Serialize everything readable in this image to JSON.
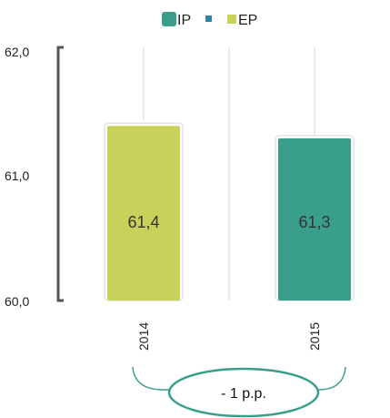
{
  "chart_data": {
    "type": "bar",
    "categories": [
      "2014",
      "2015"
    ],
    "values": [
      61.4,
      61.3
    ],
    "data_labels": [
      "61,4",
      "61,3"
    ],
    "bar_colors": [
      "#c8d25a",
      "#3a9e8c"
    ],
    "legend": [
      {
        "name": "IP",
        "color": "#3a9e8c"
      },
      {
        "name": "",
        "color": "#2e86a3"
      },
      {
        "name": "EP",
        "color": "#c8d25a"
      }
    ],
    "legend_position": "top",
    "y_ticks": [
      "60,0",
      "61,0",
      "62,0"
    ],
    "ylim": [
      60,
      62
    ],
    "annotation": "- 1 p.p.",
    "title": "",
    "xlabel": "",
    "ylabel": ""
  }
}
